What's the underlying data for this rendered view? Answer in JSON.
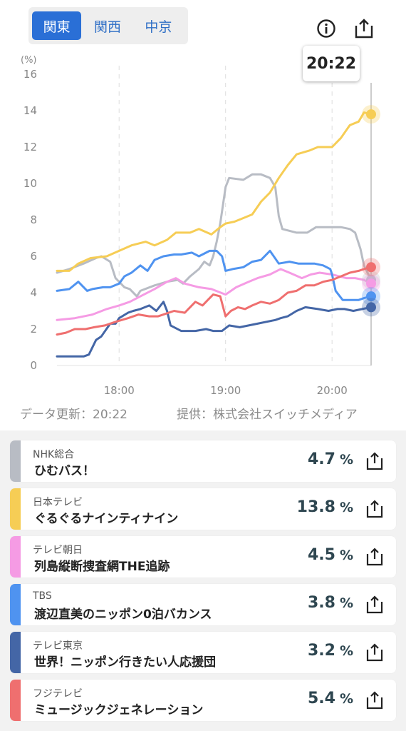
{
  "region_tabs": [
    {
      "label": "関東",
      "active": true
    },
    {
      "label": "関西",
      "active": false
    },
    {
      "label": "中京",
      "active": false
    }
  ],
  "tooltip_time": "20:22",
  "icons": {
    "info": "info-icon",
    "share": "share-icon"
  },
  "chart_data": {
    "type": "line",
    "ylabel": "(%)",
    "ylim": [
      0,
      16
    ],
    "yticks": [
      0,
      2,
      4,
      6,
      8,
      10,
      12,
      14,
      16
    ],
    "xlim": [
      "17:25",
      "20:22"
    ],
    "xticks": [
      "18:00",
      "19:00",
      "20:00"
    ],
    "cursor": "20:22",
    "grid": true,
    "series": [
      {
        "name": "NHK総合",
        "color": "#b8bcc4",
        "points": [
          [
            "17:25",
            5.1
          ],
          [
            "17:32",
            5.3
          ],
          [
            "17:40",
            5.6
          ],
          [
            "17:47",
            5.9
          ],
          [
            "17:50",
            6.0
          ],
          [
            "17:55",
            5.7
          ],
          [
            "17:58",
            4.8
          ],
          [
            "18:03",
            4.3
          ],
          [
            "18:06",
            4.2
          ],
          [
            "18:10",
            3.8
          ],
          [
            "18:12",
            4.1
          ],
          [
            "18:20",
            4.4
          ],
          [
            "18:27",
            4.6
          ],
          [
            "18:33",
            4.7
          ],
          [
            "18:36",
            4.5
          ],
          [
            "18:40",
            4.9
          ],
          [
            "18:45",
            5.3
          ],
          [
            "18:48",
            5.7
          ],
          [
            "18:51",
            5.5
          ],
          [
            "18:53",
            6.0
          ],
          [
            "18:55",
            6.8
          ],
          [
            "18:57",
            7.8
          ],
          [
            "19:00",
            9.8
          ],
          [
            "19:02",
            10.3
          ],
          [
            "19:10",
            10.2
          ],
          [
            "19:15",
            10.5
          ],
          [
            "19:20",
            10.5
          ],
          [
            "19:25",
            10.3
          ],
          [
            "19:28",
            9.8
          ],
          [
            "19:30",
            8.2
          ],
          [
            "19:32",
            7.5
          ],
          [
            "19:40",
            7.3
          ],
          [
            "19:46",
            7.3
          ],
          [
            "19:51",
            7.6
          ],
          [
            "20:00",
            7.6
          ],
          [
            "20:05",
            7.6
          ],
          [
            "20:10",
            7.5
          ],
          [
            "20:13",
            7.3
          ],
          [
            "20:16",
            6.4
          ],
          [
            "20:18",
            5.5
          ],
          [
            "20:22",
            4.7
          ]
        ]
      },
      {
        "name": "日本テレビ",
        "color": "#f6cd55",
        "points": [
          [
            "17:25",
            5.2
          ],
          [
            "17:32",
            5.2
          ],
          [
            "17:37",
            5.6
          ],
          [
            "17:44",
            5.9
          ],
          [
            "17:53",
            6.0
          ],
          [
            "18:00",
            6.3
          ],
          [
            "18:07",
            6.6
          ],
          [
            "18:15",
            6.8
          ],
          [
            "18:20",
            6.6
          ],
          [
            "18:27",
            6.9
          ],
          [
            "18:32",
            7.3
          ],
          [
            "18:40",
            7.3
          ],
          [
            "18:45",
            7.5
          ],
          [
            "18:52",
            7.2
          ],
          [
            "18:57",
            7.6
          ],
          [
            "19:00",
            7.8
          ],
          [
            "19:05",
            7.9
          ],
          [
            "19:10",
            8.1
          ],
          [
            "19:15",
            8.3
          ],
          [
            "19:20",
            9.0
          ],
          [
            "19:25",
            9.5
          ],
          [
            "19:30",
            10.3
          ],
          [
            "19:35",
            11.0
          ],
          [
            "19:40",
            11.6
          ],
          [
            "19:47",
            11.8
          ],
          [
            "19:52",
            12.0
          ],
          [
            "20:00",
            12.0
          ],
          [
            "20:05",
            12.5
          ],
          [
            "20:10",
            13.2
          ],
          [
            "20:15",
            13.4
          ],
          [
            "20:18",
            13.9
          ],
          [
            "20:22",
            13.8
          ]
        ]
      },
      {
        "name": "テレビ朝日",
        "color": "#f59be4",
        "points": [
          [
            "17:25",
            2.5
          ],
          [
            "17:35",
            2.6
          ],
          [
            "17:45",
            2.8
          ],
          [
            "17:53",
            3.1
          ],
          [
            "18:00",
            3.3
          ],
          [
            "18:06",
            3.5
          ],
          [
            "18:12",
            3.8
          ],
          [
            "18:20",
            4.2
          ],
          [
            "18:27",
            4.6
          ],
          [
            "18:32",
            4.8
          ],
          [
            "18:37",
            4.5
          ],
          [
            "18:45",
            4.3
          ],
          [
            "18:52",
            4.2
          ],
          [
            "19:00",
            3.9
          ],
          [
            "19:06",
            4.3
          ],
          [
            "19:13",
            4.6
          ],
          [
            "19:18",
            4.8
          ],
          [
            "19:25",
            5.0
          ],
          [
            "19:31",
            5.3
          ],
          [
            "19:36",
            5.1
          ],
          [
            "19:43",
            4.8
          ],
          [
            "19:48",
            5.0
          ],
          [
            "19:53",
            5.1
          ],
          [
            "20:00",
            5.0
          ],
          [
            "20:08",
            4.8
          ],
          [
            "20:13",
            4.8
          ],
          [
            "20:18",
            4.7
          ],
          [
            "20:22",
            4.5
          ]
        ]
      },
      {
        "name": "TBS",
        "color": "#4f93f0",
        "points": [
          [
            "17:25",
            4.1
          ],
          [
            "17:32",
            4.2
          ],
          [
            "17:37",
            4.6
          ],
          [
            "17:42",
            4.1
          ],
          [
            "17:45",
            4.2
          ],
          [
            "17:51",
            4.3
          ],
          [
            "17:55",
            4.3
          ],
          [
            "18:00",
            4.5
          ],
          [
            "18:03",
            4.9
          ],
          [
            "18:07",
            5.1
          ],
          [
            "18:12",
            5.5
          ],
          [
            "18:16",
            5.2
          ],
          [
            "18:20",
            5.8
          ],
          [
            "18:25",
            6.0
          ],
          [
            "18:31",
            6.1
          ],
          [
            "18:35",
            6.1
          ],
          [
            "18:41",
            6.2
          ],
          [
            "18:45",
            6.0
          ],
          [
            "18:51",
            6.3
          ],
          [
            "18:55",
            6.3
          ],
          [
            "18:58",
            6.0
          ],
          [
            "19:00",
            5.2
          ],
          [
            "19:04",
            5.3
          ],
          [
            "19:10",
            5.4
          ],
          [
            "19:15",
            5.7
          ],
          [
            "19:20",
            5.8
          ],
          [
            "19:25",
            6.3
          ],
          [
            "19:30",
            5.6
          ],
          [
            "19:36",
            5.7
          ],
          [
            "19:41",
            5.6
          ],
          [
            "19:45",
            5.6
          ],
          [
            "19:50",
            5.6
          ],
          [
            "19:55",
            5.5
          ],
          [
            "19:59",
            5.3
          ],
          [
            "20:00",
            5.0
          ],
          [
            "20:02",
            4.1
          ],
          [
            "20:06",
            3.6
          ],
          [
            "20:11",
            3.6
          ],
          [
            "20:15",
            3.6
          ],
          [
            "20:18",
            3.7
          ],
          [
            "20:22",
            3.8
          ]
        ]
      },
      {
        "name": "テレビ東京",
        "color": "#4466a6",
        "points": [
          [
            "17:25",
            0.5
          ],
          [
            "17:33",
            0.5
          ],
          [
            "17:40",
            0.5
          ],
          [
            "17:43",
            0.6
          ],
          [
            "17:47",
            1.4
          ],
          [
            "17:50",
            1.6
          ],
          [
            "17:55",
            2.3
          ],
          [
            "17:58",
            2.3
          ],
          [
            "18:00",
            2.6
          ],
          [
            "18:05",
            2.9
          ],
          [
            "18:08",
            3.0
          ],
          [
            "18:12",
            3.1
          ],
          [
            "18:17",
            3.3
          ],
          [
            "18:21",
            3.0
          ],
          [
            "18:25",
            3.5
          ],
          [
            "18:27",
            3.0
          ],
          [
            "18:29",
            2.2
          ],
          [
            "18:35",
            1.9
          ],
          [
            "18:43",
            1.9
          ],
          [
            "18:49",
            2.0
          ],
          [
            "18:53",
            1.9
          ],
          [
            "18:58",
            1.9
          ],
          [
            "19:02",
            2.2
          ],
          [
            "19:08",
            2.1
          ],
          [
            "19:13",
            2.2
          ],
          [
            "19:18",
            2.3
          ],
          [
            "19:23",
            2.4
          ],
          [
            "19:28",
            2.5
          ],
          [
            "19:31",
            2.6
          ],
          [
            "19:35",
            2.7
          ],
          [
            "19:40",
            3.0
          ],
          [
            "19:45",
            3.2
          ],
          [
            "19:52",
            3.1
          ],
          [
            "19:58",
            3.0
          ],
          [
            "20:03",
            3.1
          ],
          [
            "20:07",
            3.1
          ],
          [
            "20:12",
            3.0
          ],
          [
            "20:17",
            3.1
          ],
          [
            "20:22",
            3.2
          ]
        ]
      },
      {
        "name": "フジテレビ",
        "color": "#ef6f6f",
        "points": [
          [
            "17:25",
            1.7
          ],
          [
            "17:30",
            1.8
          ],
          [
            "17:35",
            2.0
          ],
          [
            "17:41",
            2.0
          ],
          [
            "17:46",
            2.1
          ],
          [
            "17:52",
            2.2
          ],
          [
            "17:58",
            2.4
          ],
          [
            "18:05",
            2.6
          ],
          [
            "18:11",
            2.8
          ],
          [
            "18:17",
            2.7
          ],
          [
            "18:22",
            2.7
          ],
          [
            "18:25",
            2.8
          ],
          [
            "18:31",
            3.0
          ],
          [
            "18:37",
            2.9
          ],
          [
            "18:43",
            3.5
          ],
          [
            "18:47",
            3.3
          ],
          [
            "18:50",
            3.6
          ],
          [
            "18:53",
            3.9
          ],
          [
            "18:57",
            3.8
          ],
          [
            "19:00",
            2.7
          ],
          [
            "19:03",
            3.0
          ],
          [
            "19:07",
            3.2
          ],
          [
            "19:11",
            3.1
          ],
          [
            "19:15",
            3.3
          ],
          [
            "19:20",
            3.5
          ],
          [
            "19:25",
            3.4
          ],
          [
            "19:30",
            3.6
          ],
          [
            "19:35",
            4.0
          ],
          [
            "19:40",
            4.1
          ],
          [
            "19:45",
            4.4
          ],
          [
            "19:50",
            4.4
          ],
          [
            "19:55",
            4.6
          ],
          [
            "20:00",
            4.7
          ],
          [
            "20:05",
            4.9
          ],
          [
            "20:10",
            5.1
          ],
          [
            "20:15",
            5.2
          ],
          [
            "20:18",
            5.3
          ],
          [
            "20:22",
            5.4
          ]
        ]
      }
    ]
  },
  "footer": {
    "updated": "データ更新：20:22",
    "provider": "提供：株式会社スイッチメディア"
  },
  "channels": [
    {
      "network": "NHK総合",
      "program": "ひむバス！",
      "rating": "4.7",
      "unit": "%",
      "color": "#b8bcc4"
    },
    {
      "network": "日本テレビ",
      "program": "ぐるぐるナインティナイン",
      "rating": "13.8",
      "unit": "%",
      "color": "#f6cd55"
    },
    {
      "network": "テレビ朝日",
      "program": "列島縦断捜査網THE追跡",
      "rating": "4.5",
      "unit": "%",
      "color": "#f59be4"
    },
    {
      "network": "TBS",
      "program": "渡辺直美のニッポン0泊バカンス",
      "rating": "3.8",
      "unit": "%",
      "color": "#4f93f0"
    },
    {
      "network": "テレビ東京",
      "program": "世界！ニッポン行きたい人応援団",
      "rating": "3.2",
      "unit": "%",
      "color": "#4466a6"
    },
    {
      "network": "フジテレビ",
      "program": "ミュージックジェネレーション",
      "rating": "5.4",
      "unit": "%",
      "color": "#ef6f6f"
    }
  ]
}
